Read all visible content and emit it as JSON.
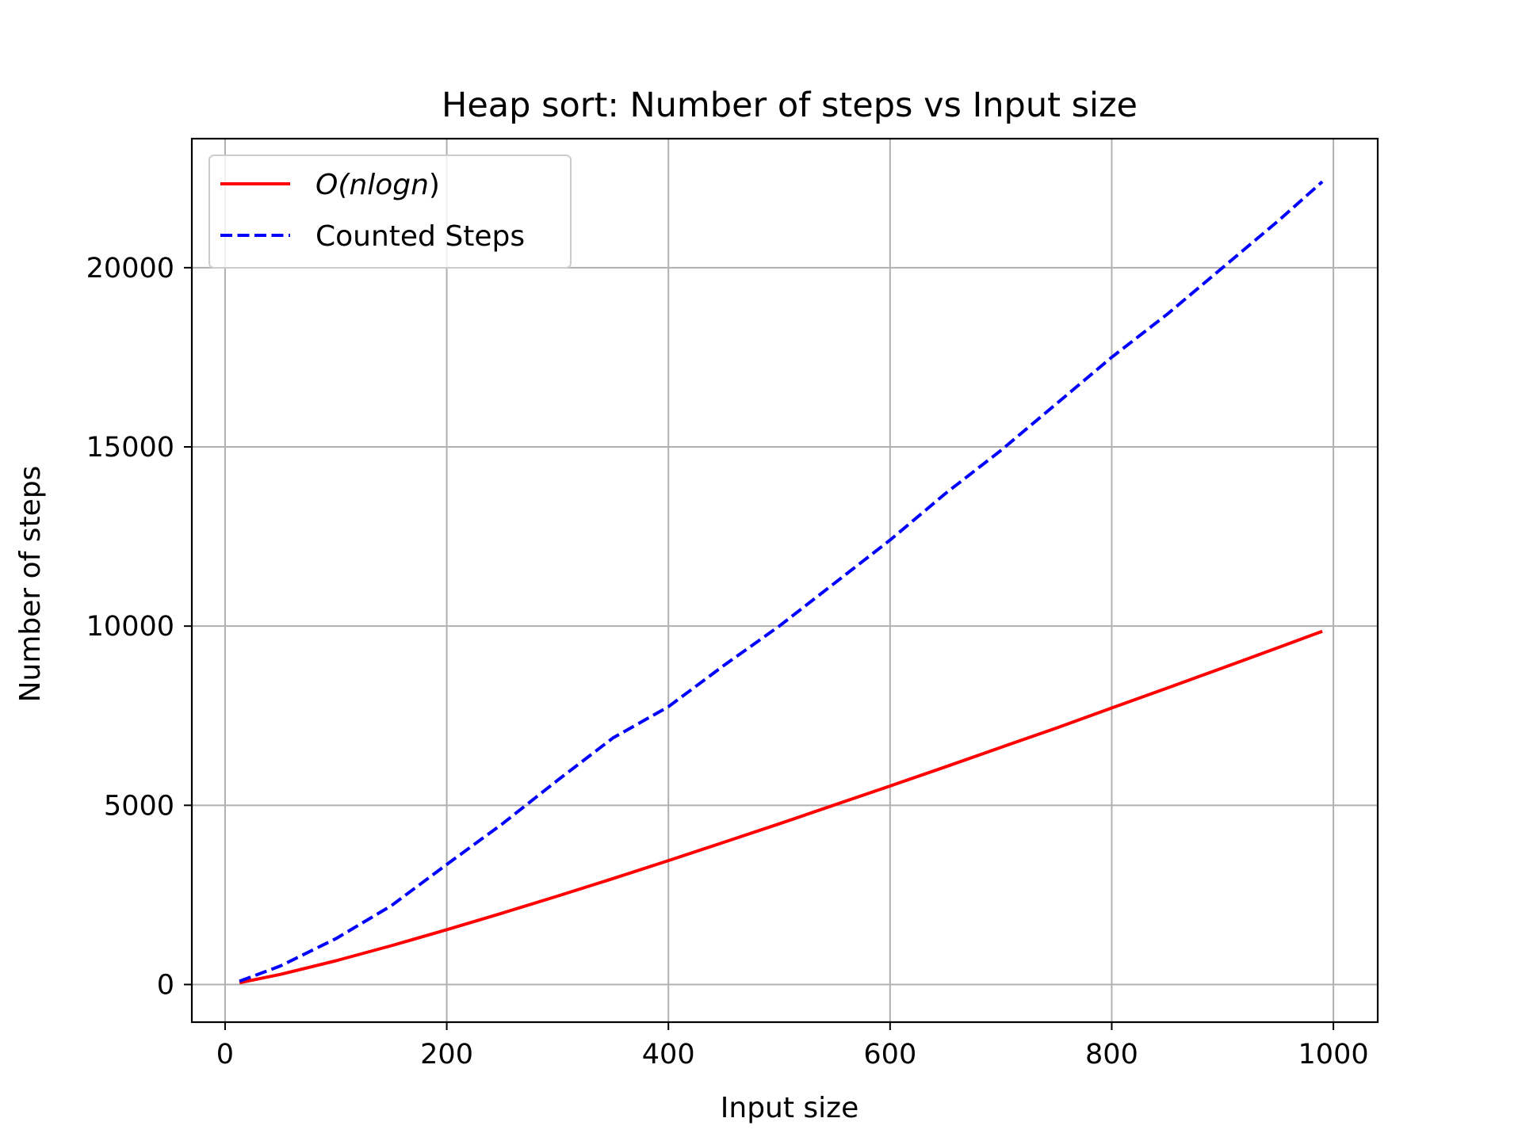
{
  "chart_data": {
    "type": "line",
    "title": "Heap sort: Number of steps vs Input size",
    "xlabel": "Input size",
    "ylabel": "Number of steps",
    "xlim": [
      -30,
      1040
    ],
    "ylim": [
      -1050,
      23600
    ],
    "xticks": [
      0,
      200,
      400,
      600,
      800,
      1000
    ],
    "yticks": [
      0,
      5000,
      10000,
      15000,
      20000
    ],
    "grid": true,
    "legend_position": "upper-left",
    "x": [
      13,
      50,
      100,
      150,
      200,
      250,
      300,
      350,
      400,
      450,
      500,
      550,
      600,
      650,
      700,
      750,
      800,
      850,
      900,
      950,
      990
    ],
    "series": [
      {
        "name": "O(nlogn)",
        "name_parts": {
          "prefix": "O(",
          "italic": "nlogn",
          "suffix": ")"
        },
        "color": "#ff0000",
        "style": "solid",
        "values": [
          48,
          282,
          664,
          1084,
          1529,
          1991,
          2468,
          2957,
          3458,
          3968,
          4483,
          5012,
          5537,
          6073,
          6616,
          7155,
          7715,
          8270,
          8832,
          9398,
          9855
        ]
      },
      {
        "name": "Counted Steps",
        "color": "#0000ff",
        "style": "dashed",
        "values": [
          90,
          520,
          1280,
          2200,
          3350,
          4480,
          5700,
          6880,
          7750,
          8900,
          10000,
          11200,
          12400,
          13700,
          14900,
          16200,
          17500,
          18700,
          20000,
          21300,
          22400
        ]
      }
    ]
  }
}
